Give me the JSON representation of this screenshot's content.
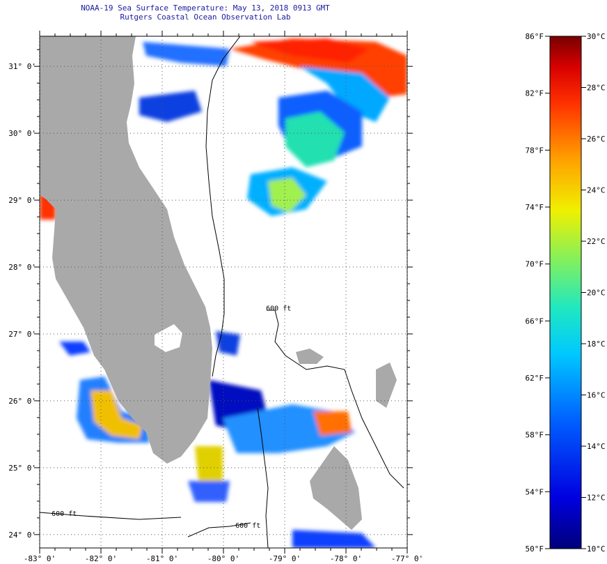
{
  "title": "NOAA-19 Sea Surface Temperature:  May 13, 2018 0913 GMT",
  "subtitle": "Rutgers Coastal Ocean Observation Lab",
  "map": {
    "lon_range": [
      -83,
      -77
    ],
    "lat_range": [
      23.8,
      31.45
    ],
    "lat_labels": [
      "31° 0'",
      "30° 0'",
      "29° 0'",
      "28° 0'",
      "27° 0'",
      "26° 0'",
      "25° 0'",
      "24° 0'"
    ],
    "lat_values": [
      31,
      30,
      29,
      28,
      27,
      26,
      25,
      24
    ],
    "lon_labels": [
      "-83° 0'",
      "-82° 0'",
      "-81° 0'",
      "-80° 0'",
      "-79° 0'",
      "-78° 0'",
      "-77° 0'"
    ],
    "lon_values": [
      -83,
      -82,
      -81,
      -80,
      -79,
      -78,
      -77
    ],
    "contour_labels": [
      {
        "text": "600 ft",
        "lon": -79.1,
        "lat": 27.35
      },
      {
        "text": "600 ft",
        "lon": -82.6,
        "lat": 24.28
      },
      {
        "text": "600 ft",
        "lon": -79.6,
        "lat": 24.1
      }
    ],
    "land_color": "#a9a9a9"
  },
  "colorbar": {
    "fahrenheit_labels": [
      "86°F",
      "82°F",
      "78°F",
      "74°F",
      "70°F",
      "66°F",
      "62°F",
      "58°F",
      "54°F",
      "50°F"
    ],
    "fahrenheit_values": [
      86,
      82,
      78,
      74,
      70,
      66,
      62,
      58,
      54,
      50
    ],
    "celsius_labels": [
      "30°C",
      "28°C",
      "26°C",
      "24°C",
      "22°C",
      "20°C",
      "18°C",
      "16°C",
      "14°C",
      "12°C",
      "10°C"
    ],
    "celsius_values": [
      30,
      28,
      26,
      24,
      22,
      20,
      18,
      16,
      14,
      12,
      10
    ],
    "range_f": [
      50,
      86
    ]
  }
}
